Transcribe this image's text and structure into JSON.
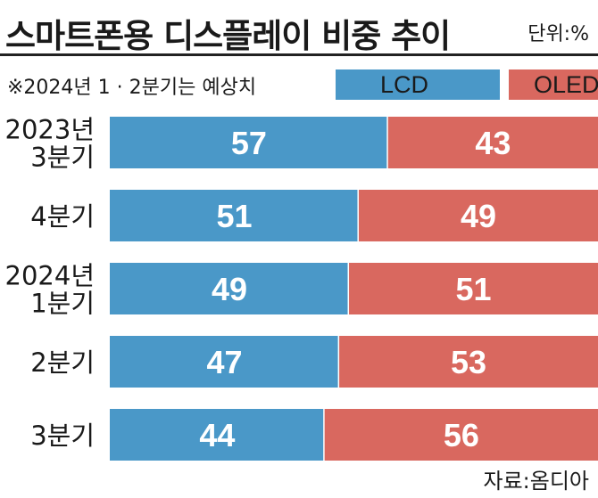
{
  "header": {
    "title": "스마트폰용 디스플레이 비중 추이",
    "unit": "단위:%"
  },
  "note": "※2024년 1 · 2분기는 예상치",
  "legend": [
    {
      "label": "LCD",
      "color": "#4a98c8"
    },
    {
      "label": "OLED",
      "color": "#d9685f"
    }
  ],
  "source": "자료:옴디아",
  "colors": {
    "lcd": "#4a98c8",
    "oled": "#d9685f"
  },
  "chart_data": {
    "type": "bar",
    "orientation": "horizontal",
    "stacked": true,
    "title": "스마트폰용 디스플레이 비중 추이",
    "xlabel": "",
    "ylabel": "",
    "xlim": [
      0,
      100
    ],
    "unit": "%",
    "categories": [
      "2023년 3분기",
      "4분기",
      "2024년 1분기",
      "2분기",
      "3분기"
    ],
    "category_lines": [
      [
        "2023년",
        "3분기"
      ],
      [
        "4분기"
      ],
      [
        "2024년",
        "1분기"
      ],
      [
        "2분기"
      ],
      [
        "3분기"
      ]
    ],
    "series": [
      {
        "name": "LCD",
        "values": [
          57,
          51,
          49,
          47,
          44
        ]
      },
      {
        "name": "OLED",
        "values": [
          43,
          49,
          51,
          53,
          56
        ]
      }
    ],
    "grid": false,
    "legend_position": "top-right"
  }
}
